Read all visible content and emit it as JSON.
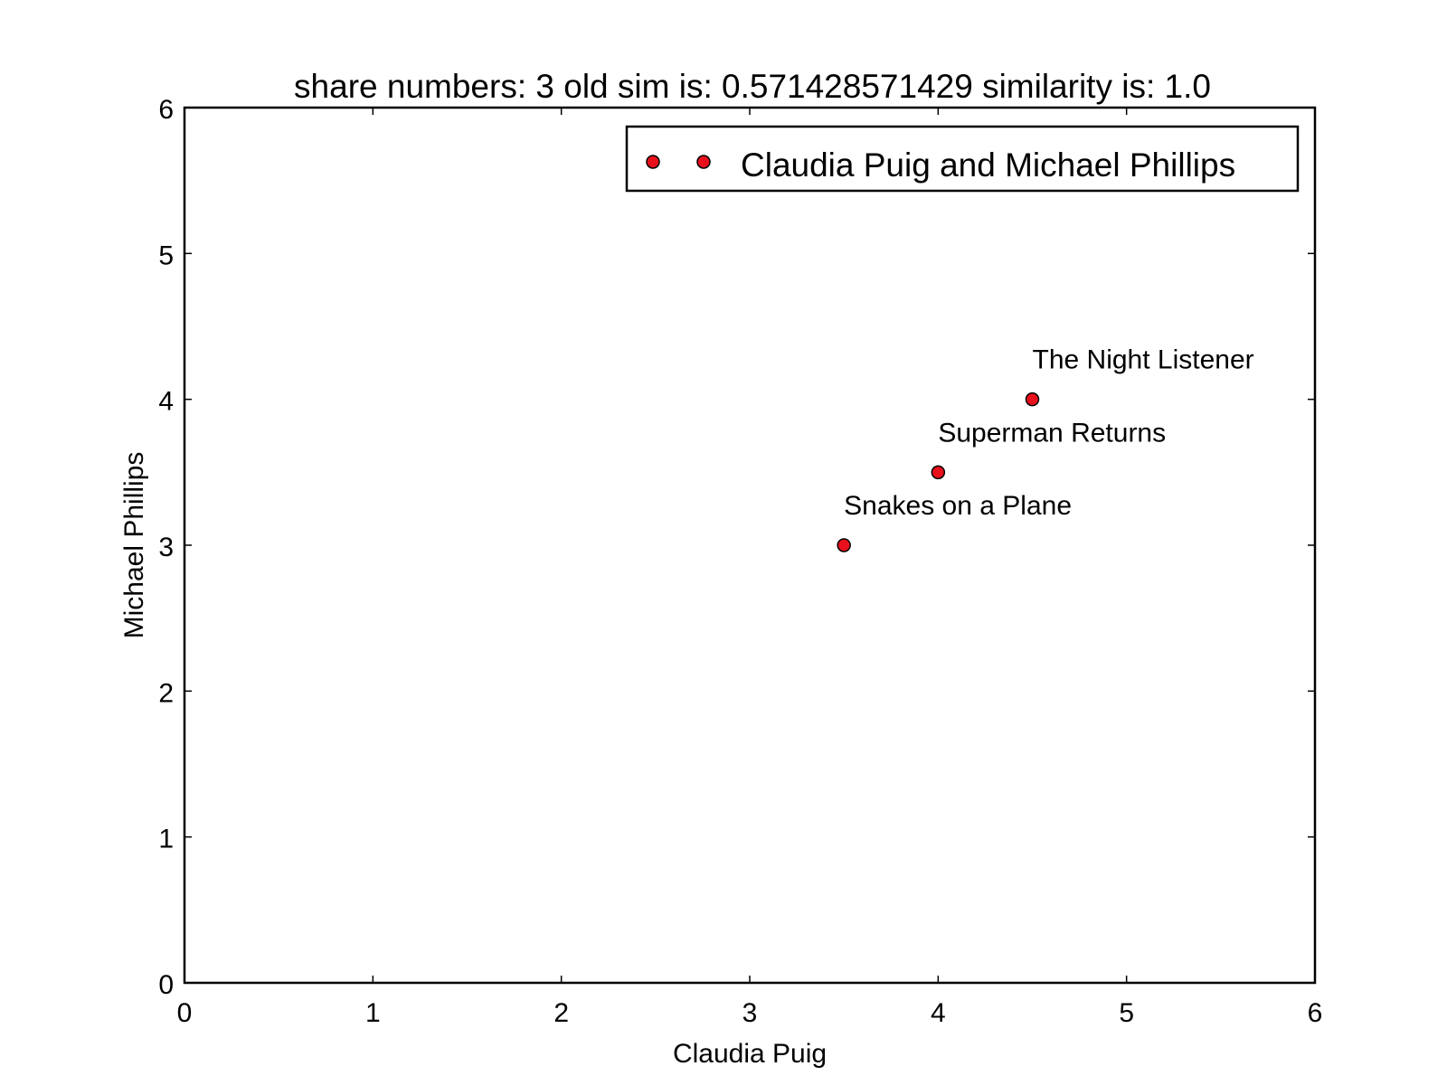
{
  "chart_data": {
    "type": "scatter",
    "title": "share numbers: 3 old sim is: 0.571428571429 similarity is: 1.0",
    "xlabel": "Claudia Puig",
    "ylabel": "Michael Phillips",
    "xlim": [
      0,
      6
    ],
    "ylim": [
      0,
      6
    ],
    "xticks": [
      0,
      1,
      2,
      3,
      4,
      5,
      6
    ],
    "yticks": [
      0,
      1,
      2,
      3,
      4,
      5,
      6
    ],
    "grid": false,
    "legend": {
      "position": "top-right",
      "entries": [
        "Claudia Puig and Michael Phillips"
      ]
    },
    "series": [
      {
        "name": "Claudia Puig and Michael Phillips",
        "color": "#e8101c",
        "points": [
          {
            "label": "Snakes on a Plane",
            "x": 3.5,
            "y": 3.0
          },
          {
            "label": "Superman Returns",
            "x": 4.0,
            "y": 3.5
          },
          {
            "label": "The Night Listener",
            "x": 4.5,
            "y": 4.0
          }
        ]
      }
    ]
  }
}
